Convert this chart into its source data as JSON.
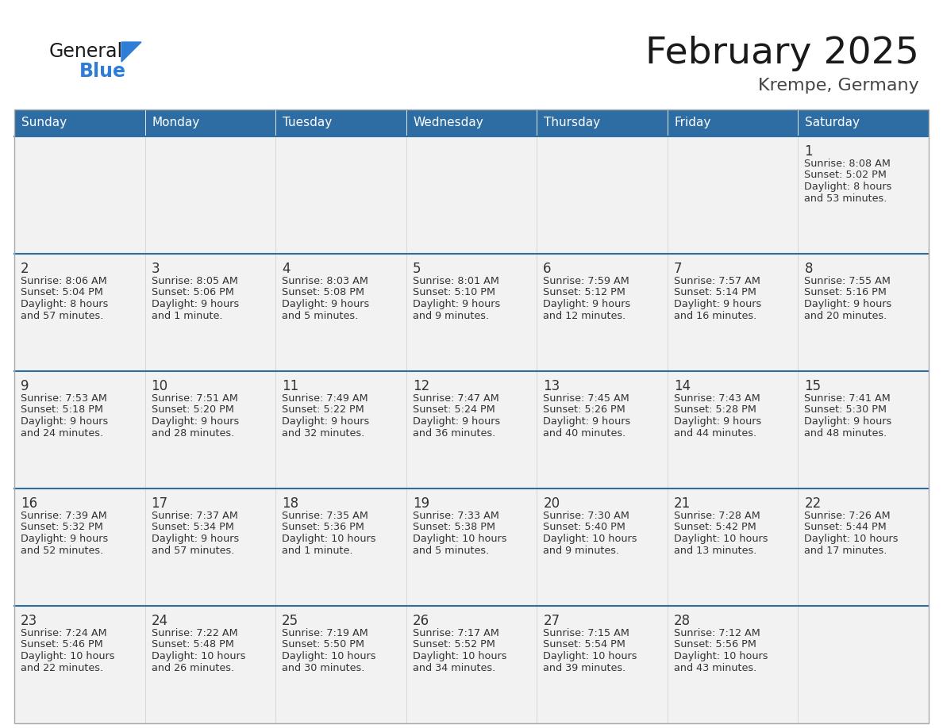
{
  "title": "February 2025",
  "subtitle": "Krempe, Germany",
  "days_of_week": [
    "Sunday",
    "Monday",
    "Tuesday",
    "Wednesday",
    "Thursday",
    "Friday",
    "Saturday"
  ],
  "header_bg": "#2E6DA4",
  "header_text": "#FFFFFF",
  "cell_bg": "#F2F2F2",
  "row_border_color": "#2E6DA4",
  "cell_border_color": "#CCCCCC",
  "day_number_color": "#333333",
  "info_text_color": "#333333",
  "title_color": "#1a1a1a",
  "subtitle_color": "#444444",
  "logo_general_color": "#1a1a1a",
  "logo_blue_color": "#2E7DD6",
  "weeks": [
    [
      null,
      null,
      null,
      null,
      null,
      null,
      1
    ],
    [
      2,
      3,
      4,
      5,
      6,
      7,
      8
    ],
    [
      9,
      10,
      11,
      12,
      13,
      14,
      15
    ],
    [
      16,
      17,
      18,
      19,
      20,
      21,
      22
    ],
    [
      23,
      24,
      25,
      26,
      27,
      28,
      null
    ]
  ],
  "day_data": {
    "1": {
      "sunrise": "8:08 AM",
      "sunset": "5:02 PM",
      "daylight_hrs": "8 hours",
      "daylight_min": "and 53 minutes."
    },
    "2": {
      "sunrise": "8:06 AM",
      "sunset": "5:04 PM",
      "daylight_hrs": "8 hours",
      "daylight_min": "and 57 minutes."
    },
    "3": {
      "sunrise": "8:05 AM",
      "sunset": "5:06 PM",
      "daylight_hrs": "9 hours",
      "daylight_min": "and 1 minute."
    },
    "4": {
      "sunrise": "8:03 AM",
      "sunset": "5:08 PM",
      "daylight_hrs": "9 hours",
      "daylight_min": "and 5 minutes."
    },
    "5": {
      "sunrise": "8:01 AM",
      "sunset": "5:10 PM",
      "daylight_hrs": "9 hours",
      "daylight_min": "and 9 minutes."
    },
    "6": {
      "sunrise": "7:59 AM",
      "sunset": "5:12 PM",
      "daylight_hrs": "9 hours",
      "daylight_min": "and 12 minutes."
    },
    "7": {
      "sunrise": "7:57 AM",
      "sunset": "5:14 PM",
      "daylight_hrs": "9 hours",
      "daylight_min": "and 16 minutes."
    },
    "8": {
      "sunrise": "7:55 AM",
      "sunset": "5:16 PM",
      "daylight_hrs": "9 hours",
      "daylight_min": "and 20 minutes."
    },
    "9": {
      "sunrise": "7:53 AM",
      "sunset": "5:18 PM",
      "daylight_hrs": "9 hours",
      "daylight_min": "and 24 minutes."
    },
    "10": {
      "sunrise": "7:51 AM",
      "sunset": "5:20 PM",
      "daylight_hrs": "9 hours",
      "daylight_min": "and 28 minutes."
    },
    "11": {
      "sunrise": "7:49 AM",
      "sunset": "5:22 PM",
      "daylight_hrs": "9 hours",
      "daylight_min": "and 32 minutes."
    },
    "12": {
      "sunrise": "7:47 AM",
      "sunset": "5:24 PM",
      "daylight_hrs": "9 hours",
      "daylight_min": "and 36 minutes."
    },
    "13": {
      "sunrise": "7:45 AM",
      "sunset": "5:26 PM",
      "daylight_hrs": "9 hours",
      "daylight_min": "and 40 minutes."
    },
    "14": {
      "sunrise": "7:43 AM",
      "sunset": "5:28 PM",
      "daylight_hrs": "9 hours",
      "daylight_min": "and 44 minutes."
    },
    "15": {
      "sunrise": "7:41 AM",
      "sunset": "5:30 PM",
      "daylight_hrs": "9 hours",
      "daylight_min": "and 48 minutes."
    },
    "16": {
      "sunrise": "7:39 AM",
      "sunset": "5:32 PM",
      "daylight_hrs": "9 hours",
      "daylight_min": "and 52 minutes."
    },
    "17": {
      "sunrise": "7:37 AM",
      "sunset": "5:34 PM",
      "daylight_hrs": "9 hours",
      "daylight_min": "and 57 minutes."
    },
    "18": {
      "sunrise": "7:35 AM",
      "sunset": "5:36 PM",
      "daylight_hrs": "10 hours",
      "daylight_min": "and 1 minute."
    },
    "19": {
      "sunrise": "7:33 AM",
      "sunset": "5:38 PM",
      "daylight_hrs": "10 hours",
      "daylight_min": "and 5 minutes."
    },
    "20": {
      "sunrise": "7:30 AM",
      "sunset": "5:40 PM",
      "daylight_hrs": "10 hours",
      "daylight_min": "and 9 minutes."
    },
    "21": {
      "sunrise": "7:28 AM",
      "sunset": "5:42 PM",
      "daylight_hrs": "10 hours",
      "daylight_min": "and 13 minutes."
    },
    "22": {
      "sunrise": "7:26 AM",
      "sunset": "5:44 PM",
      "daylight_hrs": "10 hours",
      "daylight_min": "and 17 minutes."
    },
    "23": {
      "sunrise": "7:24 AM",
      "sunset": "5:46 PM",
      "daylight_hrs": "10 hours",
      "daylight_min": "and 22 minutes."
    },
    "24": {
      "sunrise": "7:22 AM",
      "sunset": "5:48 PM",
      "daylight_hrs": "10 hours",
      "daylight_min": "and 26 minutes."
    },
    "25": {
      "sunrise": "7:19 AM",
      "sunset": "5:50 PM",
      "daylight_hrs": "10 hours",
      "daylight_min": "and 30 minutes."
    },
    "26": {
      "sunrise": "7:17 AM",
      "sunset": "5:52 PM",
      "daylight_hrs": "10 hours",
      "daylight_min": "and 34 minutes."
    },
    "27": {
      "sunrise": "7:15 AM",
      "sunset": "5:54 PM",
      "daylight_hrs": "10 hours",
      "daylight_min": "and 39 minutes."
    },
    "28": {
      "sunrise": "7:12 AM",
      "sunset": "5:56 PM",
      "daylight_hrs": "10 hours",
      "daylight_min": "and 43 minutes."
    }
  }
}
